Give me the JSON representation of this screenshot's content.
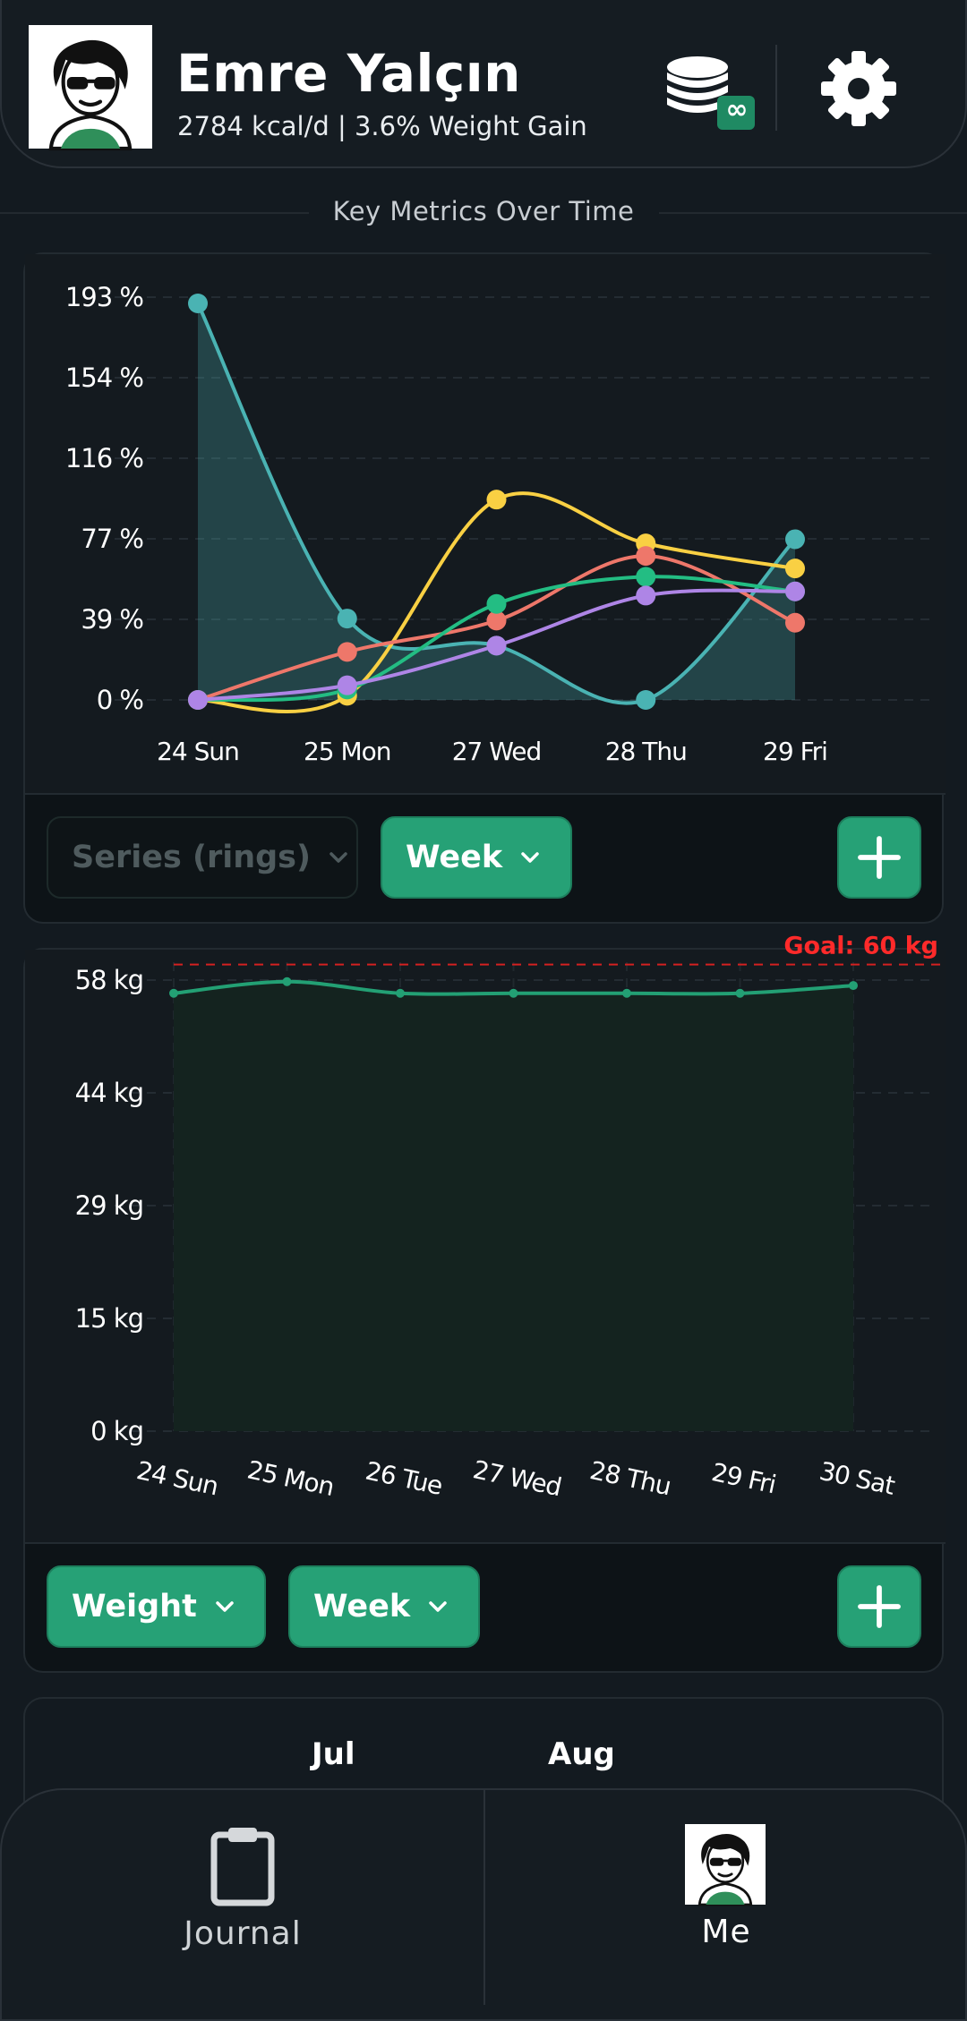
{
  "header": {
    "user_name": "Emre Yalçın",
    "user_stats": "2784 kcal/d | 3.6% Weight Gain",
    "coins_badge": "∞"
  },
  "section_title": "Key Metrics Over Time",
  "metrics_card": {
    "series_dropdown": "Series (rings)",
    "range_dropdown": "Week"
  },
  "weight_card": {
    "metric_dropdown": "Weight",
    "range_dropdown": "Week"
  },
  "calendar": {
    "months": [
      "Jul",
      "Aug"
    ]
  },
  "bottom_nav": {
    "journal_label": "Journal",
    "me_label": "Me"
  },
  "colors": {
    "accent": "#26a176",
    "teal": "#4ab3b3",
    "yellow": "#f9d043",
    "red": "#ee776a",
    "green": "#23bd83",
    "purple": "#ae85e6",
    "goal": "#ff2a2a"
  },
  "chart_data": [
    {
      "type": "line",
      "categories": [
        "24 Sun",
        "25 Mon",
        "27 Wed",
        "28 Thu",
        "29 Fri"
      ],
      "y_tick_labels": [
        "193 %",
        "154 %",
        "116 %",
        "77 %",
        "39 %",
        "0 %"
      ],
      "ylim": [
        0,
        193
      ],
      "grid": true,
      "series": [
        {
          "color": "#4ab3b3",
          "values": [
            190,
            39,
            26,
            0,
            77
          ],
          "filled": true
        },
        {
          "color": "#f9d043",
          "values": [
            0,
            2,
            96,
            75,
            63
          ]
        },
        {
          "color": "#ee776a",
          "values": [
            0,
            23,
            38,
            69,
            37
          ]
        },
        {
          "color": "#23bd83",
          "values": [
            0,
            5,
            46,
            59,
            52
          ]
        },
        {
          "color": "#ae85e6",
          "values": [
            0,
            7,
            26,
            50,
            52
          ]
        }
      ]
    },
    {
      "type": "area",
      "categories": [
        "24 Sun",
        "25 Mon",
        "26 Tue",
        "27 Wed",
        "28 Thu",
        "29 Fri",
        "30 Sat"
      ],
      "y_tick_labels": [
        "58 kg",
        "44 kg",
        "29 kg",
        "15 kg",
        "0 kg"
      ],
      "ylim": [
        0,
        58
      ],
      "goal": 60,
      "goal_label": "Goal: 60 kg",
      "grid": true,
      "series": [
        {
          "color": "#23a074",
          "values": [
            56.3,
            57.8,
            56.3,
            56.3,
            56.3,
            56.3,
            57.3
          ]
        }
      ]
    }
  ]
}
